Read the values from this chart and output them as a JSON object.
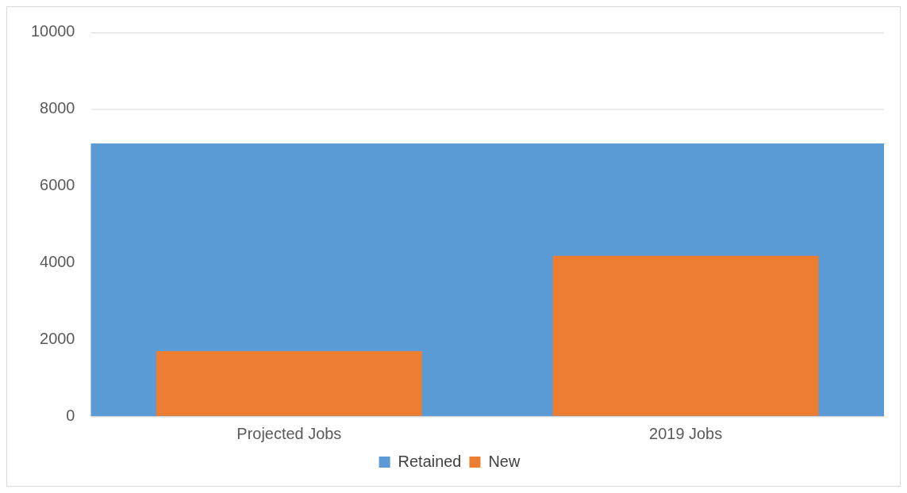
{
  "chart_data": {
    "type": "bar",
    "categories": [
      "Projected Jobs",
      "2019 Jobs"
    ],
    "series": [
      {
        "name": "Retained",
        "color": "#5b9bd5",
        "values": [
          7100,
          7100
        ]
      },
      {
        "name": "New",
        "color": "#ed7d31",
        "values": [
          1700,
          4180
        ]
      }
    ],
    "ylim": [
      0,
      10000
    ],
    "yticks": [
      0,
      2000,
      4000,
      6000,
      8000,
      10000
    ],
    "grid": "y",
    "legend": "bottom"
  }
}
